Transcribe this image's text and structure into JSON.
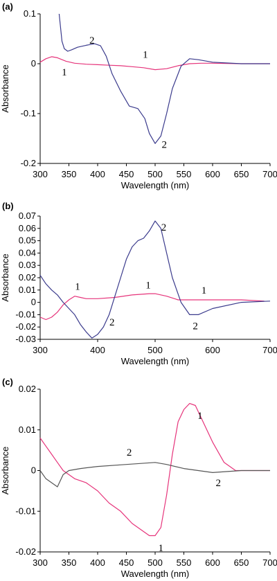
{
  "colors": {
    "series1": "#e6337a",
    "series2_ab": "#3a3a8c",
    "series2_c": "#555555",
    "axis": "#000000"
  },
  "chart_data": [
    {
      "type": "line",
      "panel_label": "(a)",
      "xlabel": "Wavelength (nm)",
      "ylabel": "Absorbance",
      "xlim": [
        300,
        700
      ],
      "ylim": [
        -0.2,
        0.1
      ],
      "xticks": [
        "300",
        "350",
        "400",
        "450",
        "500",
        "550",
        "600",
        "650",
        "700"
      ],
      "yticks": [
        "0.1",
        "0",
        "-0.1",
        "-0.2"
      ],
      "ytick_values": [
        0.1,
        0,
        -0.1,
        -0.2
      ],
      "series": [
        {
          "id": "1",
          "color": "series1",
          "x": [
            300,
            310,
            320,
            330,
            345,
            360,
            380,
            400,
            420,
            440,
            460,
            480,
            500,
            520,
            540,
            560,
            580,
            600,
            650,
            700
          ],
          "y": [
            0.003,
            0.01,
            0.014,
            0.012,
            0.005,
            0.001,
            -0.001,
            -0.002,
            -0.003,
            -0.004,
            -0.006,
            -0.008,
            -0.012,
            -0.01,
            -0.004,
            0.0,
            0.001,
            0.001,
            0.0,
            0.0
          ]
        },
        {
          "id": "2",
          "color": "series2_ab",
          "x": [
            333,
            338,
            342,
            348,
            355,
            365,
            380,
            395,
            405,
            415,
            425,
            440,
            455,
            470,
            482,
            490,
            500,
            510,
            520,
            530,
            545,
            560,
            575,
            600,
            650,
            700
          ],
          "y": [
            0.1,
            0.045,
            0.03,
            0.025,
            0.028,
            0.033,
            0.037,
            0.04,
            0.036,
            0.015,
            -0.02,
            -0.055,
            -0.085,
            -0.09,
            -0.11,
            -0.14,
            -0.16,
            -0.145,
            -0.1,
            -0.05,
            -0.005,
            0.01,
            0.008,
            0.003,
            0.0,
            0.0
          ]
        }
      ],
      "annotations": [
        {
          "text": "2",
          "x": 390,
          "y": 0.047
        },
        {
          "text": "1",
          "x": 483,
          "y": 0.019
        },
        {
          "text": "1",
          "x": 342,
          "y": -0.017
        },
        {
          "text": "2",
          "x": 516,
          "y": -0.162
        }
      ]
    },
    {
      "type": "line",
      "panel_label": "(b)",
      "xlabel": "Wavelength (nm)",
      "ylabel": "Absorbance",
      "xlim": [
        300,
        700
      ],
      "ylim": [
        -0.03,
        0.07
      ],
      "xticks": [
        "300",
        "400",
        "500",
        "600",
        "700"
      ],
      "yticks": [
        "0.07",
        "0.06",
        "0.05",
        "0.04",
        "0.03",
        "0.02",
        "0.01",
        "0",
        "-0.01",
        "-0.02",
        "-0.03"
      ],
      "ytick_values": [
        0.07,
        0.06,
        0.05,
        0.04,
        0.03,
        0.02,
        0.01,
        0,
        -0.01,
        -0.02,
        -0.03
      ],
      "series": [
        {
          "id": "1",
          "color": "series1",
          "x": [
            300,
            310,
            320,
            330,
            340,
            350,
            360,
            370,
            380,
            400,
            430,
            460,
            490,
            500,
            520,
            540,
            560,
            580,
            600,
            650,
            690
          ],
          "y": [
            -0.012,
            -0.014,
            -0.012,
            -0.008,
            -0.002,
            0.002,
            0.005,
            0.004,
            0.003,
            0.003,
            0.004,
            0.006,
            0.007,
            0.007,
            0.005,
            0.002,
            0.002,
            0.002,
            0.002,
            0.002,
            0.001
          ]
        },
        {
          "id": "2",
          "color": "series2_ab",
          "x": [
            300,
            310,
            320,
            330,
            340,
            350,
            360,
            370,
            380,
            390,
            400,
            410,
            420,
            430,
            440,
            450,
            460,
            470,
            480,
            490,
            500,
            510,
            520,
            530,
            545,
            560,
            575,
            600,
            650,
            700
          ],
          "y": [
            0.022,
            0.015,
            0.01,
            0.006,
            0.0,
            -0.005,
            -0.01,
            -0.018,
            -0.024,
            -0.029,
            -0.026,
            -0.02,
            -0.01,
            0.005,
            0.02,
            0.035,
            0.045,
            0.05,
            0.052,
            0.058,
            0.066,
            0.06,
            0.04,
            0.02,
            0.0,
            -0.01,
            -0.01,
            -0.005,
            0.0,
            0.001
          ]
        }
      ],
      "annotations": [
        {
          "text": "1",
          "x": 365,
          "y": 0.013
        },
        {
          "text": "1",
          "x": 488,
          "y": 0.014
        },
        {
          "text": "1",
          "x": 585,
          "y": 0.01
        },
        {
          "text": "2",
          "x": 515,
          "y": 0.061
        },
        {
          "text": "2",
          "x": 425,
          "y": -0.016
        },
        {
          "text": "2",
          "x": 570,
          "y": -0.019
        }
      ]
    },
    {
      "type": "line",
      "panel_label": "(c)",
      "xlabel": "Wavelength (nm)",
      "ylabel": "Absorbance",
      "xlim": [
        300,
        700
      ],
      "ylim": [
        -0.02,
        0.02
      ],
      "xticks": [
        "300",
        "350",
        "400",
        "450",
        "500",
        "550",
        "600",
        "650",
        "700"
      ],
      "yticks": [
        "0.02",
        "0.01",
        "0",
        "-0.01",
        "-0.02"
      ],
      "ytick_values": [
        0.02,
        0.01,
        0,
        -0.01,
        -0.02
      ],
      "series": [
        {
          "id": "1",
          "color": "series1",
          "x": [
            300,
            310,
            320,
            330,
            340,
            350,
            360,
            380,
            400,
            420,
            440,
            460,
            480,
            490,
            500,
            510,
            520,
            530,
            540,
            550,
            560,
            570,
            580,
            600,
            620,
            640,
            650,
            700
          ],
          "y": [
            0.008,
            0.006,
            0.004,
            0.002,
            0.0,
            -0.001,
            -0.002,
            -0.003,
            -0.005,
            -0.008,
            -0.01,
            -0.013,
            -0.015,
            -0.016,
            -0.016,
            -0.014,
            -0.006,
            0.004,
            0.012,
            0.015,
            0.0165,
            0.016,
            0.013,
            0.007,
            0.002,
            0.0,
            0.0,
            0.0
          ]
        },
        {
          "id": "2",
          "color": "series2_c",
          "x": [
            300,
            310,
            320,
            330,
            340,
            350,
            370,
            400,
            450,
            500,
            520,
            550,
            600,
            650,
            700
          ],
          "y": [
            0.0,
            -0.002,
            -0.003,
            -0.004,
            -0.001,
            0.0,
            0.0005,
            0.001,
            0.0015,
            0.002,
            0.0015,
            0.0005,
            -0.0005,
            0.0,
            0.0
          ]
        }
      ],
      "annotations": [
        {
          "text": "2",
          "x": 455,
          "y": 0.0045
        },
        {
          "text": "1",
          "x": 578,
          "y": 0.0135
        },
        {
          "text": "2",
          "x": 610,
          "y": -0.003
        },
        {
          "text": "1",
          "x": 510,
          "y": -0.019
        }
      ]
    }
  ]
}
